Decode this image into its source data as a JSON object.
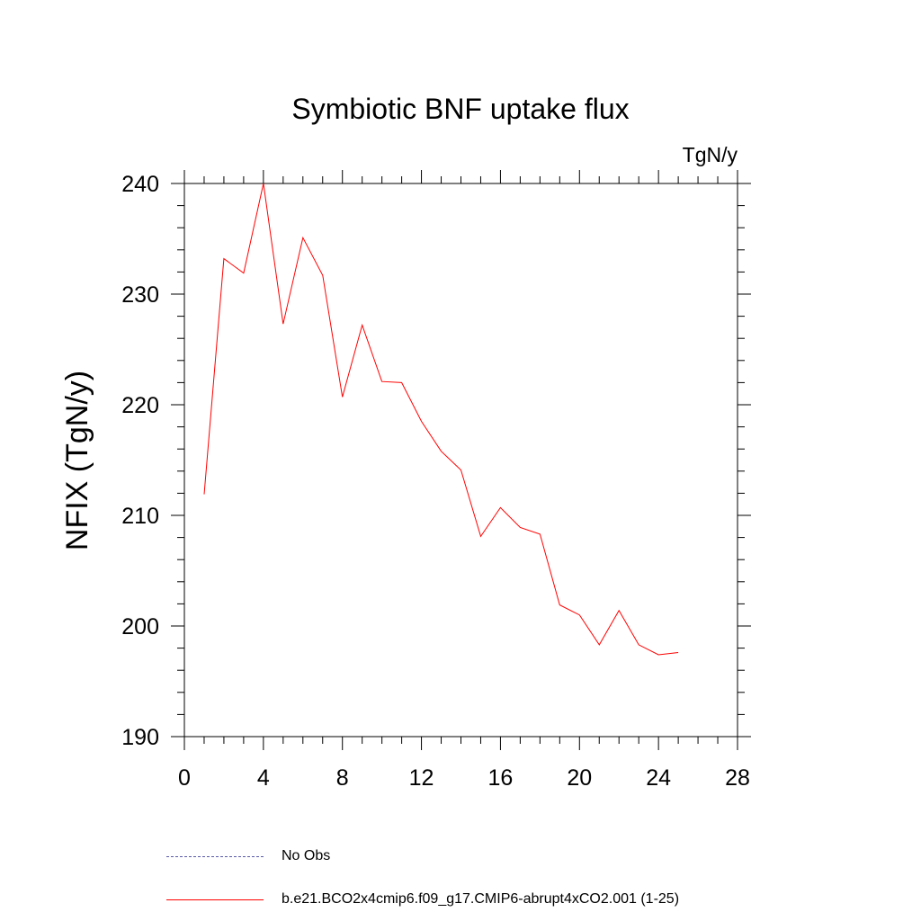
{
  "chart_data": {
    "type": "line",
    "title": "Symbiotic BNF uptake flux",
    "units": "TgN/y",
    "ylabel": "NFIX  (TgN/y)",
    "xlabel": "",
    "xlim": [
      0,
      28
    ],
    "ylim": [
      190,
      240
    ],
    "xticks": [
      0,
      4,
      8,
      12,
      16,
      20,
      24,
      28
    ],
    "yticks": [
      190,
      200,
      210,
      220,
      230,
      240
    ],
    "grid": false,
    "legend_position": "bottom",
    "series": [
      {
        "name": "b.e21.BCO2x4cmip6.f09_g17.CMIP6-abrupt4xCO2.001 (1-25)",
        "color": "#ff0000",
        "x": [
          1,
          2,
          3,
          4,
          5,
          6,
          7,
          8,
          9,
          10,
          11,
          12,
          13,
          14,
          15,
          16,
          17,
          18,
          19,
          20,
          21,
          22,
          23,
          24,
          25
        ],
        "y": [
          211.9,
          233.2,
          231.9,
          240.0,
          227.3,
          235.1,
          231.7,
          220.7,
          227.2,
          222.1,
          222.0,
          218.5,
          215.8,
          214.1,
          208.1,
          210.7,
          208.9,
          208.3,
          201.9,
          201.0,
          198.3,
          201.4,
          198.3,
          197.4,
          197.6
        ]
      }
    ]
  },
  "legend": [
    {
      "label": "No Obs",
      "color": "#5a5aa8",
      "style": "dashed"
    },
    {
      "label": "b.e21.BCO2x4cmip6.f09_g17.CMIP6-abrupt4xCO2.001 (1-25)",
      "color": "#ff0000",
      "style": "solid"
    }
  ]
}
